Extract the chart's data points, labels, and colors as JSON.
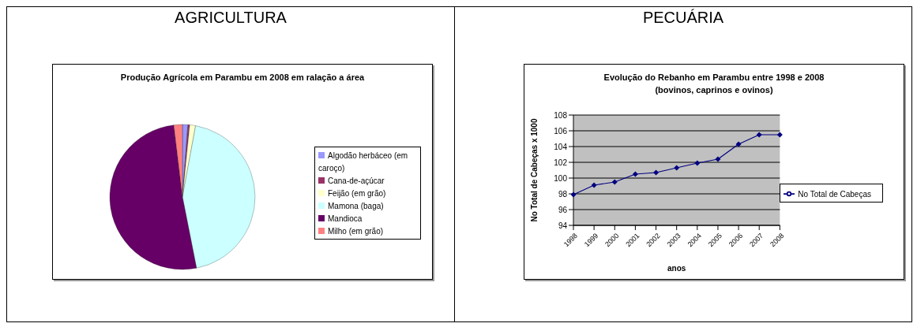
{
  "chart_data": [
    {
      "type": "pie",
      "title": "AGRICULTURA",
      "subtitle": "Produção Agrícola em Parambu em 2008 em ralação a área",
      "categories": [
        "Algodão herbáceo (em caroço)",
        "Cana-de-açúcar",
        "Feijão (em grão)",
        "Mamona (baga)",
        "Mandioca",
        "Milho (em grão)"
      ],
      "values": [
        1.2,
        0.4,
        1.3,
        44.0,
        51.2,
        1.9
      ],
      "colors": [
        "#9999ff",
        "#993366",
        "#ffffcc",
        "#ccffff",
        "#660066",
        "#ff8080"
      ],
      "legend": "right"
    },
    {
      "type": "line",
      "title": "PECUÁRIA",
      "subtitle": "Evolução do Rebanho em Parambu entre 1998 e 2008\n(bovinos, caprinos e ovinos)",
      "xlabel": "anos",
      "ylabel": "No Total de Cabeças x 1000",
      "categories": [
        "1998",
        "1999",
        "2000",
        "2001",
        "2002",
        "2003",
        "2004",
        "2005",
        "2006",
        "2007",
        "2008"
      ],
      "series": [
        {
          "name": "No Total de Cabeças",
          "color": "#000080",
          "values": [
            97.9,
            99.1,
            99.5,
            100.5,
            100.7,
            101.3,
            101.9,
            102.4,
            104.3,
            105.5,
            105.5
          ]
        }
      ],
      "ylim": [
        94,
        108
      ],
      "yticks": [
        94,
        96,
        98,
        100,
        102,
        104,
        106,
        108
      ],
      "grid": "y",
      "legend": "right",
      "marker": "diamond",
      "line_style": "solid"
    }
  ]
}
